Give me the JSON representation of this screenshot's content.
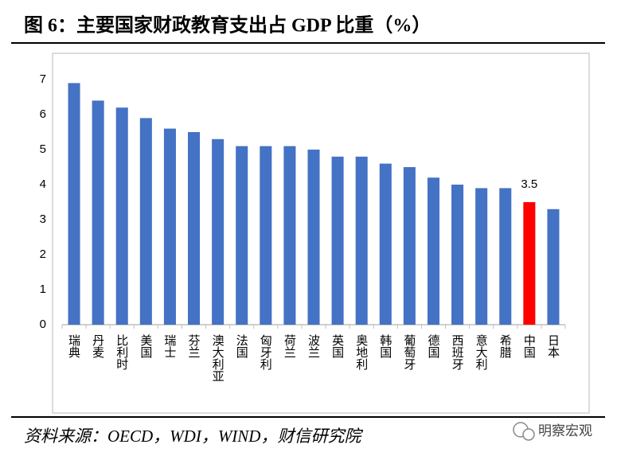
{
  "chart_data": {
    "type": "bar",
    "title": "图 6：主要国家财政教育支出占 GDP 比重（%）",
    "categories": [
      "瑞典",
      "丹麦",
      "比利时",
      "美国",
      "瑞士",
      "芬兰",
      "澳大利亚",
      "法国",
      "匈牙利",
      "荷兰",
      "波兰",
      "英国",
      "奥地利",
      "韩国",
      "葡萄牙",
      "德国",
      "西班牙",
      "意大利",
      "希腊",
      "中国",
      "日本"
    ],
    "values": [
      6.9,
      6.4,
      6.2,
      5.9,
      5.6,
      5.5,
      5.3,
      5.1,
      5.1,
      5.1,
      5.0,
      4.8,
      4.8,
      4.6,
      4.5,
      4.2,
      4.0,
      3.9,
      3.9,
      3.5,
      3.3
    ],
    "color": "#4472c4",
    "highlight": {
      "category": "中国",
      "color": "#ff0000"
    },
    "ylim": [
      0,
      7
    ],
    "yticks": [
      0,
      1,
      2,
      3,
      4,
      5,
      6,
      7
    ],
    "grid": false,
    "source": "资料来源：OECD，WDI，WIND，财信研究院",
    "watermark": "明察宏观"
  }
}
